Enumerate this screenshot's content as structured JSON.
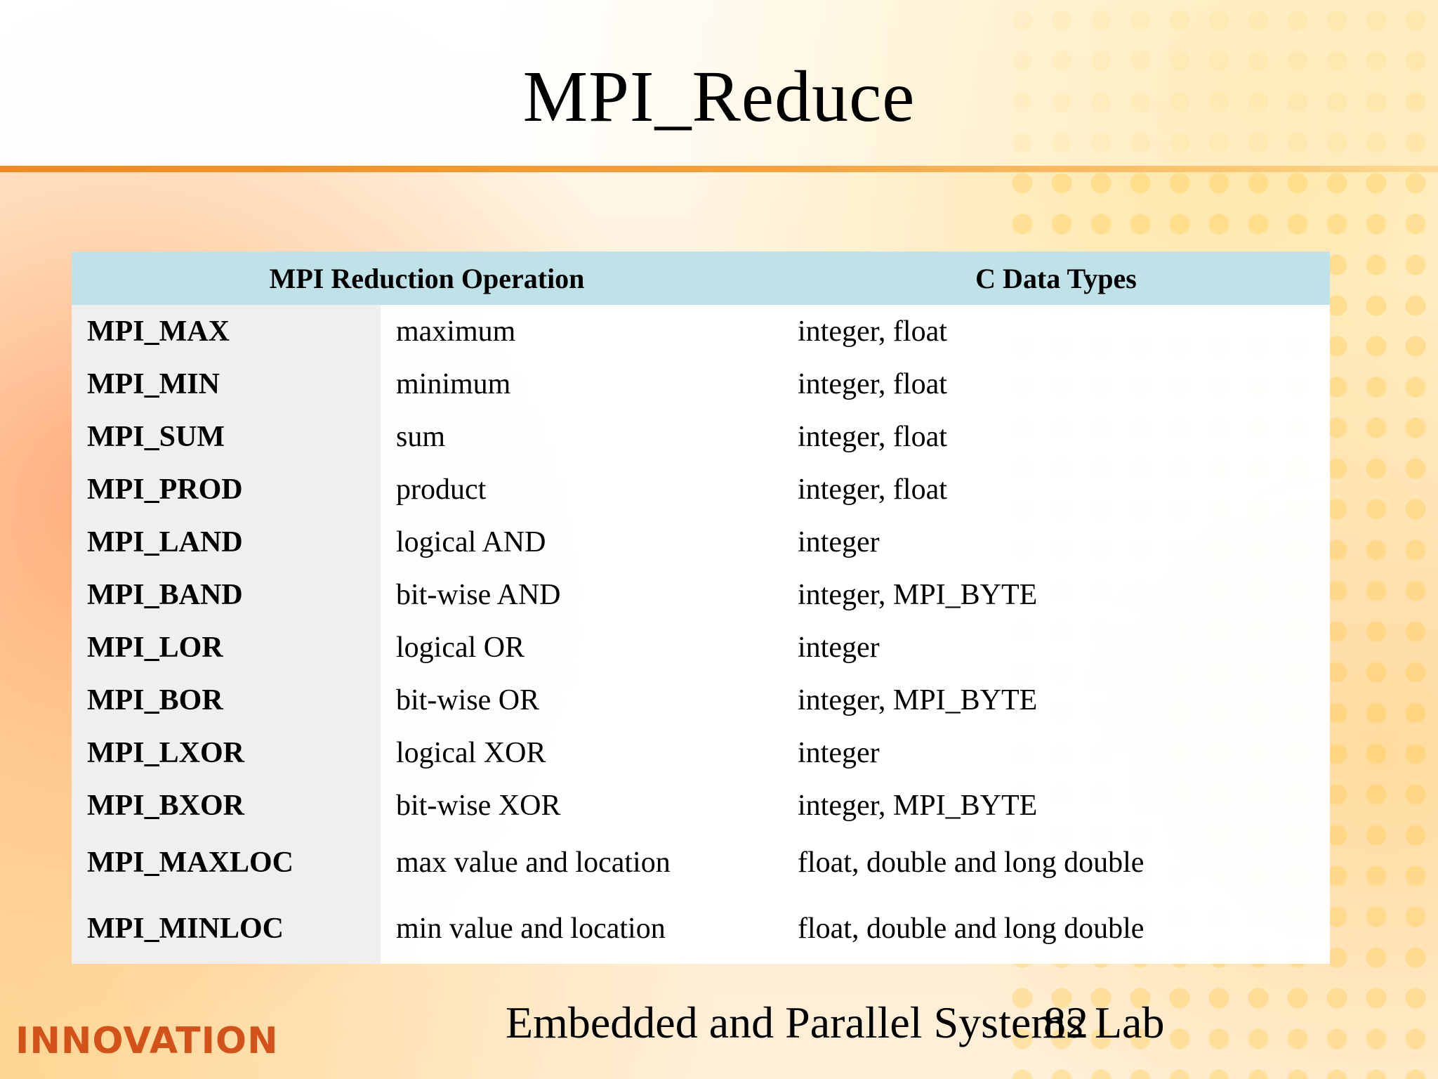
{
  "slide": {
    "title": "MPI_Reduce",
    "footer_text": "Embedded and Parallel Systems Lab",
    "page_number": "82",
    "logo_text": "INNOVATION"
  },
  "table": {
    "headers": {
      "operation": "MPI Reduction Operation",
      "types": "C Data Types"
    },
    "rows": [
      {
        "op": "MPI_MAX",
        "desc": "maximum",
        "types": "integer, float"
      },
      {
        "op": "MPI_MIN",
        "desc": "minimum",
        "types": "integer, float"
      },
      {
        "op": "MPI_SUM",
        "desc": "sum",
        "types": "integer, float"
      },
      {
        "op": "MPI_PROD",
        "desc": "product",
        "types": "integer, float"
      },
      {
        "op": "MPI_LAND",
        "desc": "logical AND",
        "types": "integer"
      },
      {
        "op": "MPI_BAND",
        "desc": "bit-wise AND",
        "types": "integer, MPI_BYTE"
      },
      {
        "op": "MPI_LOR",
        "desc": "logical OR",
        "types": "integer"
      },
      {
        "op": "MPI_BOR",
        "desc": "bit-wise OR",
        "types": "integer, MPI_BYTE"
      },
      {
        "op": "MPI_LXOR",
        "desc": "logical XOR",
        "types": "integer"
      },
      {
        "op": "MPI_BXOR",
        "desc": "bit-wise XOR",
        "types": "integer, MPI_BYTE"
      },
      {
        "op": "MPI_MAXLOC",
        "desc": "max value and location",
        "types": "float, double and long double"
      },
      {
        "op": "MPI_MINLOC",
        "desc": "min value and location",
        "types": "float, double and long double"
      }
    ]
  },
  "colors": {
    "header_bg": "#bfe2e8",
    "op_column_bg": "#efefef",
    "divider": "#f08a1c",
    "logo": "#d2521a"
  }
}
